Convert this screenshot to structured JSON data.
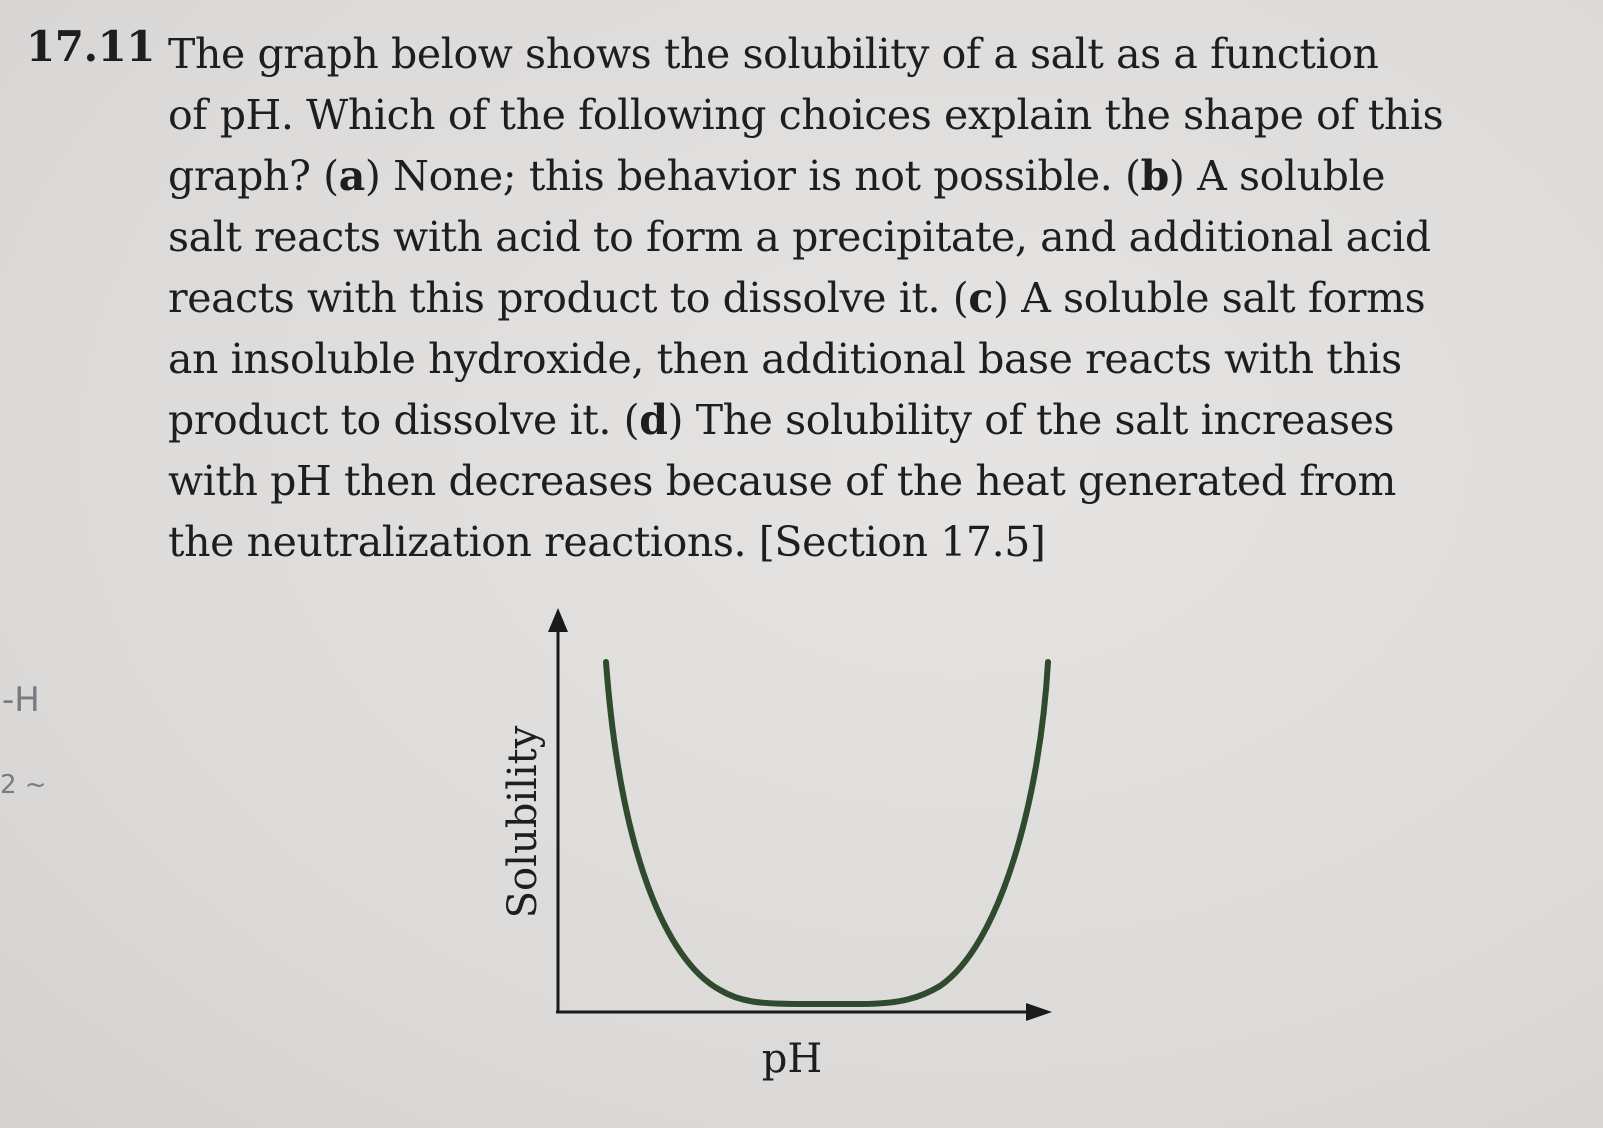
{
  "problem": {
    "number": "17.11",
    "lines": [
      {
        "segments": [
          {
            "t": "The graph below shows the solubility of a salt as a function",
            "b": false
          }
        ]
      },
      {
        "segments": [
          {
            "t": "of pH. Which of the following choices explain the shape of this",
            "b": false
          }
        ]
      },
      {
        "segments": [
          {
            "t": "graph? (",
            "b": false
          },
          {
            "t": "a",
            "b": true
          },
          {
            "t": ") None; this behavior is not possible. (",
            "b": false
          },
          {
            "t": "b",
            "b": true
          },
          {
            "t": ") A soluble",
            "b": false
          }
        ]
      },
      {
        "segments": [
          {
            "t": "salt reacts with acid to form a precipitate, and additional acid",
            "b": false
          }
        ]
      },
      {
        "segments": [
          {
            "t": "reacts with this product to dissolve it. (",
            "b": false
          },
          {
            "t": "c",
            "b": true
          },
          {
            "t": ") A soluble salt forms",
            "b": false
          }
        ]
      },
      {
        "segments": [
          {
            "t": "an insoluble hydroxide, then additional base reacts with this",
            "b": false
          }
        ]
      },
      {
        "segments": [
          {
            "t": "product to dissolve it. (",
            "b": false
          },
          {
            "t": "d",
            "b": true
          },
          {
            "t": ") The solubility of the salt increases",
            "b": false
          }
        ]
      },
      {
        "segments": [
          {
            "t": "with pH then decreases because of the heat generated from",
            "b": false
          }
        ]
      },
      {
        "segments": [
          {
            "t": "the neutralization reactions. [Section 17.5]",
            "b": false
          }
        ]
      }
    ]
  },
  "margin_marks": [
    "-H",
    "2 ~"
  ],
  "chart_data": {
    "type": "line",
    "xlabel": "pH",
    "ylabel": "Solubility",
    "curve_shape": "U",
    "curve_color": "#2f4a2c",
    "axis_color": "#1a1a1a",
    "grid": false
  }
}
